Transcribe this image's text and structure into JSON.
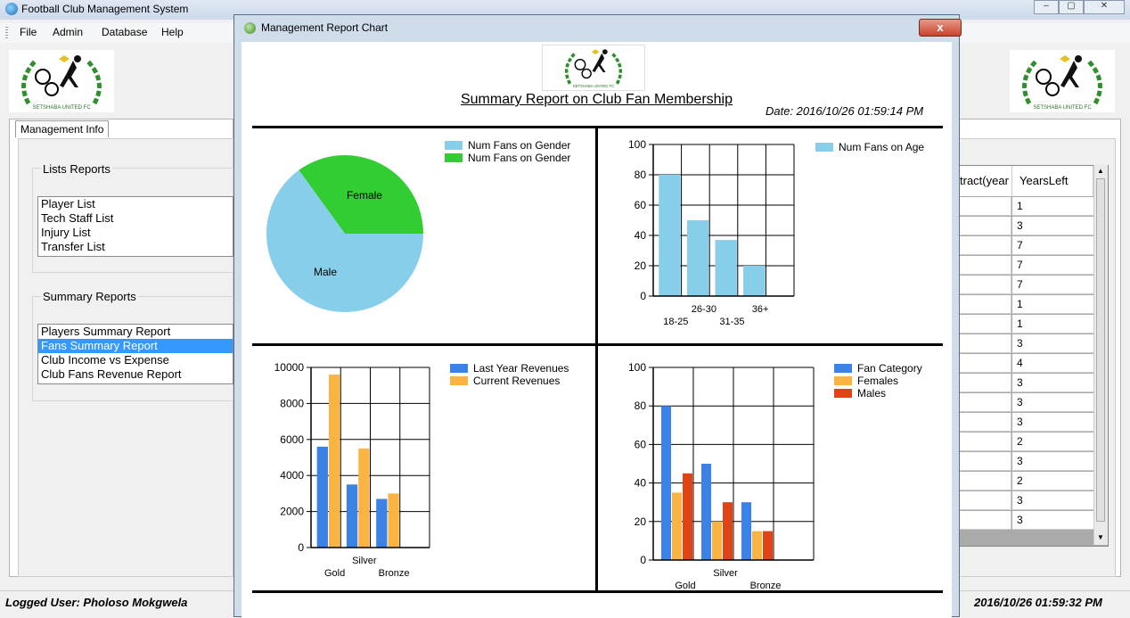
{
  "app": {
    "title": "Football Club Management System"
  },
  "menu": [
    "File",
    "Admin",
    "Database",
    "Help"
  ],
  "left": {
    "tab_label": "Management Info",
    "lists_title": "Lists Reports",
    "lists": [
      "Player List",
      "Tech Staff List",
      "Injury List",
      "Transfer List"
    ],
    "summary_title": "Summary Reports",
    "summaries": [
      "Players Summary Report",
      "Fans Summary Report",
      "Club Income vs Expense",
      "Club Fans Revenue Report"
    ],
    "selected_summary": 1
  },
  "grid": {
    "headers": [
      "tract(year",
      "YearsLeft"
    ],
    "years_left": [
      "1",
      "3",
      "7",
      "7",
      "7",
      "1",
      "1",
      "3",
      "4",
      "3",
      "3",
      "3",
      "2",
      "3",
      "2",
      "3",
      "3"
    ]
  },
  "status": {
    "user": "Logged User: Pholoso Mokgwela",
    "time": "2016/10/26 01:59:32 PM"
  },
  "dialog": {
    "title": "Management Report Chart",
    "close": "x",
    "report_title": "Summary Report on Club Fan Membership",
    "report_date": "Date: 2016/10/26 01:59:14 PM"
  },
  "colors": {
    "light_blue": "#87ceeb",
    "green": "#32cd32",
    "blue": "#3b82e6",
    "orange": "#fbb341",
    "red": "#e04315"
  },
  "chart_data": [
    {
      "type": "pie",
      "legend": [
        "Num Fans on Gender",
        "Num Fans on Gender"
      ],
      "slices": [
        {
          "label": "Female",
          "value": 35
        },
        {
          "label": "Male",
          "value": 65
        }
      ]
    },
    {
      "type": "bar",
      "legend": [
        "Num Fans on Age"
      ],
      "categories": [
        "18-25",
        "26-30",
        "31-35",
        "36+"
      ],
      "series": [
        {
          "name": "Num Fans on Age",
          "values": [
            80,
            50,
            37,
            20
          ]
        }
      ],
      "ylim": [
        0,
        100
      ],
      "yticks": [
        0,
        20,
        40,
        60,
        80,
        100
      ]
    },
    {
      "type": "bar",
      "legend": [
        "Last Year Revenues",
        "Current Revenues"
      ],
      "categories": [
        "Gold",
        "Silver",
        "Bronze"
      ],
      "series": [
        {
          "name": "Last Year Revenues",
          "values": [
            5600,
            3500,
            2700
          ]
        },
        {
          "name": "Current Revenues",
          "values": [
            9600,
            5500,
            3000
          ]
        }
      ],
      "ylim": [
        0,
        10000
      ],
      "yticks": [
        0,
        2000,
        4000,
        6000,
        8000,
        10000
      ]
    },
    {
      "type": "bar",
      "legend": [
        "Fan Category",
        "Females",
        "Males"
      ],
      "categories": [
        "Gold",
        "Silver",
        "Bronze"
      ],
      "series": [
        {
          "name": "Fan Category",
          "values": [
            80,
            50,
            30
          ]
        },
        {
          "name": "Females",
          "values": [
            35,
            20,
            15
          ]
        },
        {
          "name": "Males",
          "values": [
            45,
            30,
            15
          ]
        }
      ],
      "ylim": [
        0,
        100
      ],
      "yticks": [
        0,
        20,
        40,
        60,
        80,
        100
      ]
    }
  ]
}
